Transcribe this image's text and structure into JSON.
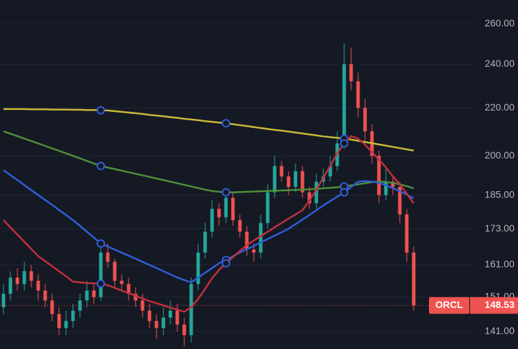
{
  "chart_data": {
    "type": "candlestick",
    "symbol": "ORCL",
    "log_scale": true,
    "grid": true,
    "up_color": "#26a69a",
    "down_color": "#ef5350",
    "ylim": [
      136.2,
      272.7
    ],
    "yticks": [
      {
        "value": 141,
        "label": "141.00"
      },
      {
        "value": 151,
        "label": "151.00"
      },
      {
        "value": 161,
        "label": "161.00"
      },
      {
        "value": 173,
        "label": "173.00"
      },
      {
        "value": 185,
        "label": "185.00"
      },
      {
        "value": 200,
        "label": "200.00"
      },
      {
        "value": 220,
        "label": "220.00"
      },
      {
        "value": 240,
        "label": "240.00"
      },
      {
        "value": 260,
        "label": "260.00"
      }
    ],
    "categories": [
      null,
      null,
      null,
      null,
      null,
      null,
      null,
      null,
      null,
      null,
      null,
      null,
      null,
      null,
      null,
      null,
      null,
      null,
      null,
      null,
      null,
      null,
      null,
      null,
      null,
      null,
      null,
      null,
      null,
      null,
      null,
      null,
      null,
      null,
      null,
      null,
      null,
      null,
      null,
      null,
      null,
      null,
      null,
      null,
      null,
      null,
      null,
      null,
      null,
      null,
      null,
      null,
      null,
      null,
      null,
      null,
      null,
      null,
      null,
      null
    ],
    "candles": [
      [
        148,
        155,
        146,
        152
      ],
      [
        152,
        159,
        150,
        157
      ],
      [
        157,
        160,
        153,
        155
      ],
      [
        155,
        162,
        153,
        159
      ],
      [
        159,
        161,
        154,
        156
      ],
      [
        156,
        158,
        150,
        153
      ],
      [
        153,
        155,
        148,
        150
      ],
      [
        150,
        152,
        144,
        146
      ],
      [
        146,
        148,
        140,
        142
      ],
      [
        142,
        147,
        140,
        144
      ],
      [
        144,
        149,
        142,
        147
      ],
      [
        147,
        152,
        145,
        150
      ],
      [
        150,
        156,
        148,
        153
      ],
      [
        153,
        155,
        149,
        151
      ],
      [
        151,
        169,
        150,
        165
      ],
      [
        165,
        168,
        160,
        162
      ],
      [
        162,
        163,
        154,
        156
      ],
      [
        156,
        158,
        153,
        155
      ],
      [
        155,
        157,
        150,
        152
      ],
      [
        152,
        154,
        148,
        150
      ],
      [
        150,
        152,
        145,
        147
      ],
      [
        147,
        149,
        142,
        144
      ],
      [
        144,
        146,
        139,
        142
      ],
      [
        142,
        148,
        140,
        145
      ],
      [
        145,
        150,
        143,
        147
      ],
      [
        147,
        149,
        141,
        143
      ],
      [
        143,
        145,
        137,
        140
      ],
      [
        140,
        157,
        138,
        155
      ],
      [
        155,
        168,
        153,
        165
      ],
      [
        165,
        175,
        163,
        172
      ],
      [
        172,
        183,
        170,
        180
      ],
      [
        180,
        182,
        174,
        177
      ],
      [
        177,
        187,
        175,
        184
      ],
      [
        184,
        186,
        174,
        176
      ],
      [
        176,
        178,
        170,
        172
      ],
      [
        172,
        174,
        164,
        166
      ],
      [
        166,
        168,
        162,
        165
      ],
      [
        165,
        178,
        163,
        175
      ],
      [
        175,
        189,
        173,
        186
      ],
      [
        186,
        200,
        184,
        196
      ],
      [
        196,
        198,
        190,
        192
      ],
      [
        192,
        194,
        185,
        188
      ],
      [
        188,
        197,
        186,
        194
      ],
      [
        194,
        196,
        184,
        186
      ],
      [
        186,
        188,
        180,
        182
      ],
      [
        182,
        193,
        180,
        190
      ],
      [
        190,
        195,
        188,
        192
      ],
      [
        192,
        200,
        190,
        196
      ],
      [
        196,
        210,
        194,
        205
      ],
      [
        205,
        250,
        203,
        240
      ],
      [
        240,
        248,
        228,
        232
      ],
      [
        232,
        236,
        216,
        220
      ],
      [
        220,
        224,
        206,
        210
      ],
      [
        210,
        213,
        197,
        200
      ],
      [
        200,
        202,
        182,
        185
      ],
      [
        185,
        195,
        183,
        190
      ],
      [
        190,
        192,
        185,
        188
      ],
      [
        188,
        190,
        175,
        178
      ],
      [
        178,
        180,
        162,
        165
      ],
      [
        165,
        167,
        147,
        148.53
      ]
    ],
    "moving_averages": [
      {
        "color": "#c9b93a",
        "values": [
          219.5,
          219.5,
          219.5,
          219.5,
          219.4,
          219.4,
          219.4,
          219.3,
          219.3,
          219.3,
          219.2,
          219.2,
          219.1,
          219.1,
          219,
          218.9,
          218.6,
          218.3,
          218,
          217.7,
          217.4,
          217,
          216.7,
          216.4,
          216,
          215.7,
          215.3,
          215,
          214.7,
          214.3,
          214,
          213.7,
          213.4,
          213,
          212.6,
          212.2,
          211.8,
          211.4,
          211,
          210.6,
          210.3,
          209.9,
          209.5,
          209.1,
          208.7,
          208.3,
          207.9,
          207.6,
          207.3,
          207,
          206.6,
          206.1,
          205.6,
          205.1,
          204.6,
          204.1,
          203.6,
          203.1,
          202.6,
          202.1
        ]
      },
      {
        "color": "#4e8f3a",
        "values": [
          210,
          209,
          208,
          207,
          206,
          205,
          204,
          203,
          202,
          201,
          200,
          199,
          198,
          197,
          196,
          195.4,
          194.8,
          194.2,
          193.6,
          193,
          192.4,
          191.8,
          191.2,
          190.6,
          190,
          189.4,
          188.8,
          188.2,
          187.6,
          187,
          186.5,
          186.2,
          186,
          186,
          186.1,
          186.2,
          186.3,
          186.4,
          186.5,
          186.6,
          186.7,
          186.8,
          186.9,
          187,
          187.1,
          187.3,
          187.5,
          187.7,
          187.9,
          188.2,
          188.6,
          189,
          189.4,
          189.8,
          190,
          189.9,
          189.5,
          189,
          188.3,
          187.5
        ]
      },
      {
        "color": "#2e5fd8",
        "values": [
          194.4,
          192.5,
          190.6,
          188.7,
          186.8,
          185,
          183.2,
          181.4,
          179.6,
          177.8,
          176,
          174,
          172,
          170,
          168,
          167,
          166,
          165,
          164,
          163,
          162,
          161,
          160,
          159,
          158,
          157,
          156.2,
          155.5,
          157,
          158.5,
          160,
          161.5,
          162.6,
          163.8,
          165,
          166.1,
          167.2,
          168.4,
          169.5,
          170.7,
          171.8,
          173,
          174.6,
          176.2,
          177.8,
          179.5,
          181.2,
          182.8,
          184.4,
          186,
          188,
          190,
          190.2,
          190,
          189.6,
          188.6,
          187.6,
          186.4,
          185.2,
          183.8
        ]
      },
      {
        "color": "#c2303f",
        "values": [
          176,
          173.5,
          171,
          168.6,
          166.2,
          163.8,
          162.2,
          160.6,
          159,
          157.4,
          155.7,
          155.5,
          155.3,
          155.2,
          155.1,
          154.6,
          153.8,
          153,
          152.2,
          151.4,
          150.6,
          149.8,
          149.2,
          148.5,
          147.9,
          147.3,
          146.7,
          148,
          150.5,
          153.5,
          156.8,
          159.4,
          161.5,
          163.5,
          165.5,
          167.5,
          169,
          170.5,
          172,
          173.5,
          175,
          176.5,
          178,
          179.5,
          183,
          187,
          191.5,
          196,
          201,
          205,
          208,
          207,
          204.5,
          201.5,
          198.5,
          195.5,
          192,
          189,
          185.5,
          182
        ]
      }
    ]
  }
}
